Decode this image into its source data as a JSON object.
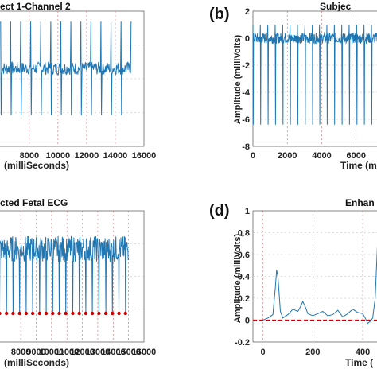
{
  "chart_data": [
    {
      "panel": "a",
      "type": "line",
      "title": "ect 1-Channel 2",
      "xlabel": "(milliSeconds)",
      "x_ticks": [
        8000,
        10000,
        12000,
        14000,
        16000
      ],
      "xlim": [
        5900,
        16000
      ],
      "ylim": [
        -3.0,
        2.2
      ],
      "grid": "dotted",
      "signal": {
        "start": 6000,
        "end": 15100,
        "baseline": 0,
        "spike_period": 700,
        "spike_high": 1.8,
        "spike_low": -1.8,
        "noise": 0.25
      },
      "color": "#1f77b4"
    },
    {
      "panel": "b",
      "label_text": "(b)",
      "type": "line",
      "title": "Subjec",
      "ylabel": "Amplitude (milliVolts)",
      "xlabel": "Time (m",
      "y_ticks": [
        2,
        0,
        -2,
        -4,
        -6,
        -8
      ],
      "x_ticks": [
        0,
        2000,
        4000,
        6000
      ],
      "xlim": [
        0,
        7400
      ],
      "ylim": [
        -8,
        2
      ],
      "grid": "dotted",
      "signal": {
        "start": 0,
        "end": 7400,
        "baseline": 0,
        "spike_period": 430,
        "spike_high": 1.0,
        "spike_low": -6.4,
        "noise": 0.4
      },
      "color": "#1f77b4"
    },
    {
      "panel": "c",
      "type": "line",
      "title": "cted Fetal ECG",
      "xlabel": "(milliSeconds)",
      "x_ticks": [
        8000,
        9000,
        10000,
        11000,
        12000,
        13000,
        14000,
        15000,
        16000
      ],
      "xlim": [
        6600,
        16000
      ],
      "ylim": [
        -3.5,
        2.0
      ],
      "grid": "dotted",
      "signal": {
        "start": 6600,
        "end": 15000,
        "baseline": 0.4,
        "spike_period": 430,
        "spike_low": -2.3,
        "noise": 0.55
      },
      "peaks_color": "#cc0000",
      "color": "#1f77b4"
    },
    {
      "panel": "d",
      "label_text": "(d)",
      "type": "line",
      "title": "Enhan",
      "ylabel": "Amplitude (milliVolts)",
      "xlabel": "Time (",
      "y_ticks": [
        1,
        0.8,
        0.6,
        0.4,
        0.2,
        0,
        -0.2
      ],
      "x_ticks": [
        0,
        200,
        400
      ],
      "xlim": [
        -40,
        470
      ],
      "ylim": [
        -0.2,
        1.0
      ],
      "grid": "dotted",
      "series": [
        {
          "name": "",
          "x": [
            0,
            20,
            40,
            50,
            55,
            60,
            70,
            80,
            100,
            120,
            140,
            150,
            160,
            170,
            180,
            200,
            220,
            240,
            260,
            280,
            300,
            320,
            340,
            360,
            380,
            400,
            410,
            420,
            430,
            440,
            450,
            460,
            470
          ],
          "y": [
            0,
            0.02,
            0.05,
            0.3,
            0.46,
            0.4,
            0.08,
            0.02,
            0.05,
            0.1,
            0.08,
            0.12,
            0.17,
            0.12,
            0.06,
            0.04,
            0.06,
            0.08,
            0.04,
            0.05,
            0.09,
            0.03,
            0.06,
            0.1,
            0.07,
            0.06,
            0.02,
            -0.03,
            -0.01,
            0.02,
            0.2,
            0.75,
            0.85
          ]
        }
      ],
      "reference_line": {
        "y": 0,
        "color": "#cc0000",
        "style": "dashed"
      },
      "color": "#1f77b4"
    }
  ]
}
